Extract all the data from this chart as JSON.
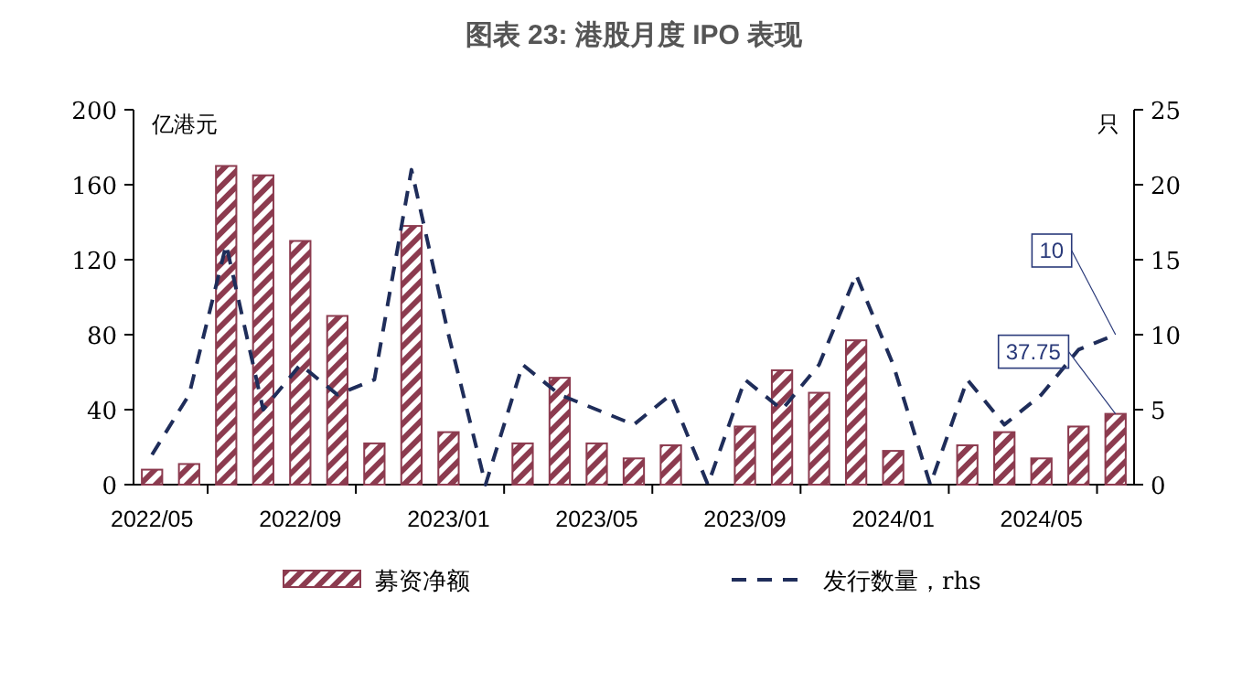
{
  "chart_data": {
    "type": "bar",
    "title": "图表 23: 港股月度 IPO 表现",
    "ylabel": "亿港元",
    "y2label": "只",
    "categories": [
      "2022/05",
      null,
      null,
      null,
      "2022/09",
      null,
      null,
      null,
      "2023/01",
      null,
      null,
      null,
      "2023/05",
      null,
      null,
      null,
      "2023/09",
      null,
      null,
      null,
      "2024/01",
      null,
      null,
      null,
      "2024/05",
      null,
      null
    ],
    "series": [
      {
        "name": "募资净额",
        "color": "#8c3b4f",
        "values": [
          8,
          11,
          170,
          165,
          130,
          90,
          22,
          138,
          28,
          0,
          22,
          57,
          22,
          14,
          21,
          0,
          31,
          61,
          49,
          77,
          18,
          0,
          21,
          28,
          14,
          31,
          37.75
        ],
        "value_labels": [
          null,
          null,
          null,
          null,
          null,
          null,
          null,
          null,
          null,
          null,
          null,
          null,
          null,
          null,
          null,
          null,
          null,
          null,
          null,
          null,
          null,
          null,
          null,
          null,
          null,
          null,
          "37.75"
        ]
      },
      {
        "name": "发行数量，rhs",
        "type": "line",
        "axis": "y2",
        "color": "#1f2d5a",
        "line_style": "dashed",
        "values": [
          2,
          6,
          16,
          5,
          8,
          6,
          7,
          21,
          10,
          0,
          8,
          6,
          5,
          4,
          6,
          0,
          7,
          5,
          8,
          14,
          8,
          0,
          7,
          4,
          6,
          9,
          10
        ],
        "value_labels": [
          null,
          null,
          null,
          null,
          null,
          null,
          null,
          null,
          null,
          null,
          null,
          null,
          null,
          null,
          null,
          null,
          null,
          null,
          null,
          null,
          null,
          null,
          null,
          null,
          null,
          null,
          "10"
        ]
      }
    ],
    "ylim": [
      0,
      200
    ],
    "yticks": [
      0,
      40,
      80,
      120,
      160,
      200
    ],
    "y2lim": [
      0,
      25
    ],
    "y2ticks": [
      0,
      5,
      10,
      15,
      20,
      25
    ],
    "legend": "bottom",
    "grid": false
  }
}
